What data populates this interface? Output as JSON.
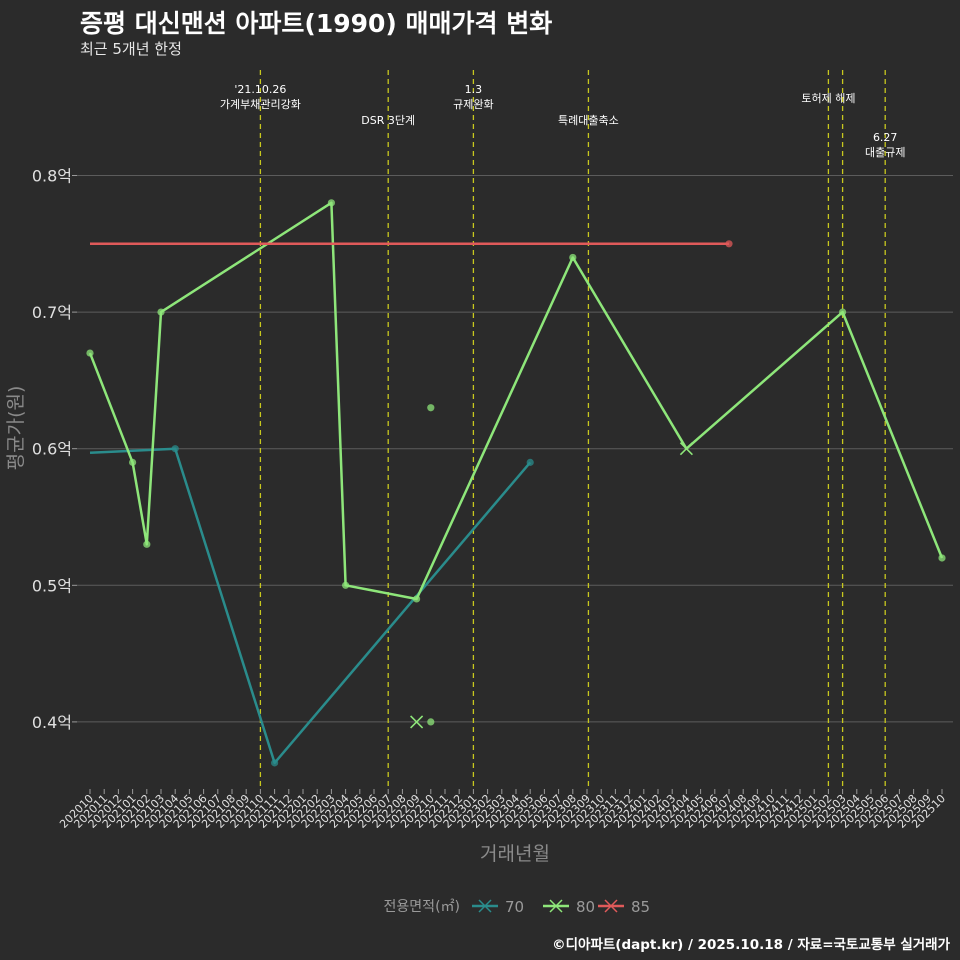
{
  "title": "증평 대신맨션 아파트(1990) 매매가격 변화",
  "subtitle": "최근 5개년 한정",
  "caption": "©디아파트(dapt.kr) / 2025.10.18 / 자료=국토교통부 실거래가",
  "colors": {
    "background": "#2b2b2b",
    "grid": "#5c5c5c",
    "event_line": "#c8c81e",
    "s70": "#2a8c8c",
    "s80": "#8ee67a",
    "s85": "#e05a5a"
  },
  "chart_data": {
    "type": "line",
    "title": "증평 대신맨션 아파트(1990) 매매가격 변화",
    "xlabel": "거래년월",
    "ylabel": "평균가(원)",
    "ylim": [
      0.35,
      0.87
    ],
    "yticks": [
      0.4,
      0.5,
      0.6,
      0.7,
      0.8
    ],
    "ytick_labels": [
      "0.4억",
      "0.5억",
      "0.6억",
      "0.7억",
      "0.8억"
    ],
    "categories": [
      "202010",
      "202011",
      "202012",
      "202101",
      "202102",
      "202103",
      "202104",
      "202105",
      "202106",
      "202107",
      "202108",
      "202109",
      "202110",
      "202111",
      "202112",
      "202201",
      "202202",
      "202203",
      "202204",
      "202205",
      "202206",
      "202207",
      "202208",
      "202209",
      "202210",
      "202211",
      "202212",
      "202301",
      "202302",
      "202303",
      "202304",
      "202305",
      "202306",
      "202307",
      "202308",
      "202309",
      "202310",
      "202311",
      "202312",
      "202401",
      "202402",
      "202403",
      "202404",
      "202405",
      "202406",
      "202407",
      "202408",
      "202409",
      "202410",
      "202411",
      "202412",
      "202501",
      "202502",
      "202503",
      "202504",
      "202505",
      "202506",
      "202507",
      "202508",
      "202509",
      "202510"
    ],
    "series": [
      {
        "name": "70",
        "color": "#2a8c8c",
        "points": [
          [
            "202010",
            0.597
          ],
          [
            "202104",
            0.6
          ],
          [
            "202111",
            0.37
          ],
          [
            "202305",
            0.59
          ]
        ],
        "markers": [
          [
            "202104",
            0.6
          ],
          [
            "202111",
            0.37
          ],
          [
            "202305",
            0.59
          ]
        ],
        "cross": []
      },
      {
        "name": "80",
        "color": "#8ee67a",
        "points": [
          [
            "202010",
            0.67
          ],
          [
            "202101",
            0.59
          ],
          [
            "202102",
            0.53
          ],
          [
            "202103",
            0.7
          ],
          [
            "202203",
            0.78
          ],
          [
            "202204",
            0.5
          ],
          [
            "202209",
            0.49
          ],
          [
            "202308",
            0.74
          ],
          [
            "202404",
            0.6
          ],
          [
            "202503",
            0.7
          ],
          [
            "202510",
            0.52
          ]
        ],
        "markers": [
          [
            "202010",
            0.67
          ],
          [
            "202101",
            0.59
          ],
          [
            "202102",
            0.53
          ],
          [
            "202103",
            0.7
          ],
          [
            "202203",
            0.78
          ],
          [
            "202204",
            0.5
          ],
          [
            "202209",
            0.49
          ],
          [
            "202308",
            0.74
          ],
          [
            "202503",
            0.7
          ],
          [
            "202510",
            0.52
          ],
          [
            "202210",
            0.63
          ],
          [
            "202210",
            0.4
          ]
        ],
        "cross": [
          [
            "202209",
            0.4
          ],
          [
            "202404",
            0.6
          ]
        ]
      },
      {
        "name": "85",
        "color": "#e05a5a",
        "points": [
          [
            "202010",
            0.75
          ],
          [
            "202407",
            0.75
          ]
        ],
        "markers": [
          [
            "202407",
            0.75
          ]
        ],
        "cross": []
      }
    ],
    "events": [
      {
        "x": "202110",
        "offset": 0,
        "lines": [
          "'21.10.26",
          "가계부채관리강화"
        ],
        "row": 0
      },
      {
        "x": "202207",
        "offset": 0,
        "lines": [
          "DSR 3단계"
        ],
        "row": 2
      },
      {
        "x": "202301",
        "offset": 0,
        "lines": [
          "1.3",
          "규제완화"
        ],
        "row": 0
      },
      {
        "x": "202309",
        "offset": 0.1,
        "lines": [
          "특례대출축소"
        ],
        "row": 2
      },
      {
        "x": "202502",
        "offset": 0,
        "lines": [
          "토허제 해제"
        ],
        "row": 1
      },
      {
        "x": "202503",
        "offset": 0,
        "lines": [],
        "row": 1
      },
      {
        "x": "202506",
        "offset": 0,
        "lines": [
          "6.27",
          "대출규제"
        ],
        "row": 3
      }
    ],
    "legend": {
      "title": "전용면적(㎡)",
      "entries": [
        "70",
        "80",
        "85"
      ],
      "position": "bottom"
    }
  }
}
